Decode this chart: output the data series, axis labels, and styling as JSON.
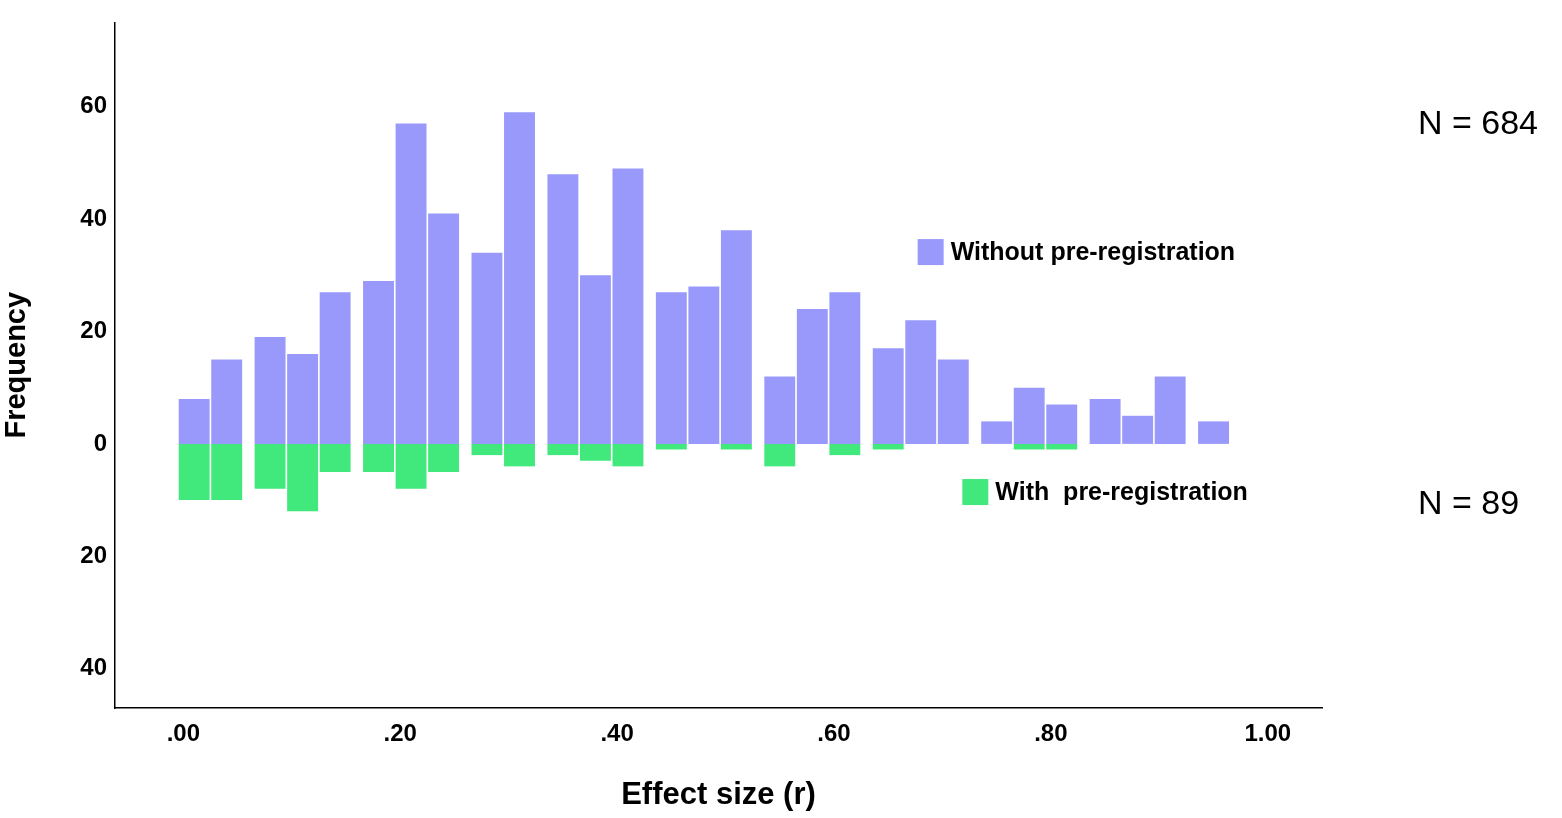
{
  "chart_data": {
    "type": "bar",
    "xlabel": "Effect size (r)",
    "ylabel": "Frequency",
    "x": [
      0.01,
      0.04,
      0.08,
      0.11,
      0.14,
      0.18,
      0.21,
      0.24,
      0.28,
      0.31,
      0.35,
      0.38,
      0.41,
      0.45,
      0.48,
      0.51,
      0.55,
      0.58,
      0.61,
      0.65,
      0.68,
      0.71,
      0.75,
      0.78,
      0.81,
      0.85,
      0.88,
      0.91,
      0.95
    ],
    "series": [
      {
        "name": "Without pre-registration",
        "color": "#9999fb",
        "values": [
          8,
          15,
          19,
          16,
          27,
          29,
          57,
          41,
          34,
          59,
          48,
          30,
          49,
          27,
          28,
          38,
          12,
          24,
          27,
          17,
          22,
          15,
          4,
          10,
          7,
          8,
          5,
          12,
          4
        ]
      },
      {
        "name": "With  pre-registration",
        "color": "#41e87b",
        "values": [
          -10,
          -10,
          -8,
          -12,
          -5,
          -5,
          -8,
          -5,
          -2,
          -4,
          -2,
          -3,
          -4,
          -1,
          0,
          -1,
          -4,
          0,
          -2,
          -1,
          0,
          0,
          0,
          -1,
          -1,
          0,
          0,
          0,
          0
        ]
      }
    ],
    "xlim": [
      -0.063,
      1.05
    ],
    "xticks": [
      {
        "value": 0,
        "label": ".00"
      },
      {
        "value": 0.2,
        "label": ".20"
      },
      {
        "value": 0.4,
        "label": ".40"
      },
      {
        "value": 0.6,
        "label": ".60"
      },
      {
        "value": 0.8,
        "label": ".80"
      },
      {
        "value": 1,
        "label": "1.00"
      }
    ],
    "ylim": [
      -47,
      75
    ],
    "yticks": [
      {
        "value": -40,
        "label": "40"
      },
      {
        "value": -20,
        "label": "20"
      },
      0,
      20,
      40,
      60
    ],
    "grid": false,
    "legend": "right",
    "stacked": true,
    "annotations": [
      "N = 684",
      "N = 89"
    ]
  }
}
